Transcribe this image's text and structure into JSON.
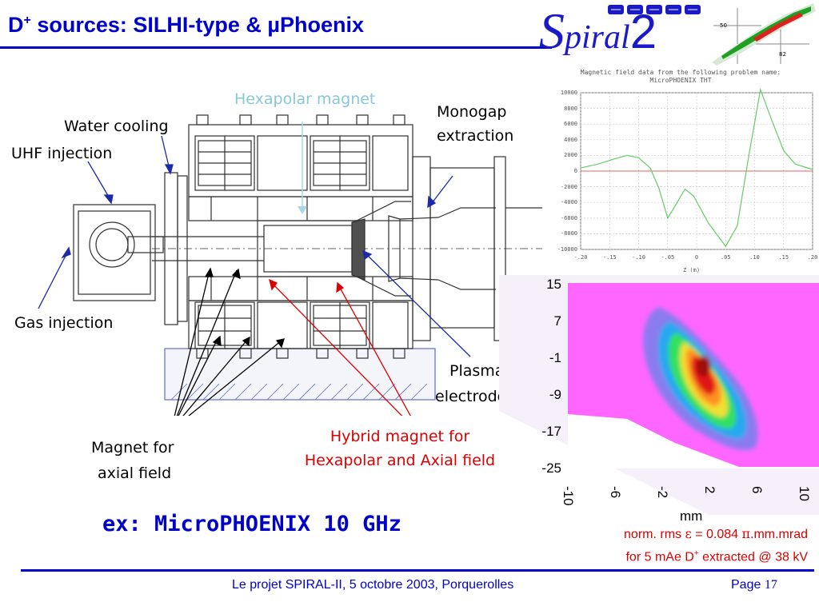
{
  "header": {
    "title_prefix": "D",
    "title_sup": "+",
    "title_rest": " sources: SILHI-type & µPhoenix",
    "logo": {
      "s": "S",
      "piral": "piral",
      "two": "2"
    }
  },
  "diagram": {
    "labels": {
      "water_cooling": "Water cooling",
      "uhf_injection": "UHF injection",
      "hexapolar_magnet": "Hexapolar magnet",
      "monogap_1": "Monogap",
      "monogap_2": "extraction",
      "gas_injection": "Gas injection",
      "plasma_1": "Plasma",
      "plasma_2": "electrode",
      "magnet_axial_1": "Magnet  for",
      "magnet_axial_2": "axial field",
      "hybrid_1": "Hybrid magnet for",
      "hybrid_2": "Hexapolar and Axial field"
    }
  },
  "field_plot": {
    "title_line1": "Magnetic field data from the following problem name:",
    "title_line2": "MicroPHOENIX THT",
    "xlabel": "Z (m)",
    "x_ticks": [
      "-.20",
      "-.15",
      "-.10",
      "-.05",
      "0",
      ".05",
      ".10",
      ".15",
      ".20"
    ],
    "y_ticks": [
      "10000",
      "8000",
      "6000",
      "4000",
      "2000",
      "0",
      "-2000",
      "-4000",
      "-6000",
      "-8000",
      "-10000"
    ],
    "ylim": [
      -10000,
      10000
    ],
    "xlim": [
      -0.2,
      0.2
    ],
    "curve": [
      [
        -0.2,
        400
      ],
      [
        -0.17,
        900
      ],
      [
        -0.14,
        1600
      ],
      [
        -0.12,
        2000
      ],
      [
        -0.1,
        1700
      ],
      [
        -0.08,
        400
      ],
      [
        -0.065,
        -2200
      ],
      [
        -0.05,
        -6000
      ],
      [
        -0.04,
        -4800
      ],
      [
        -0.02,
        -2300
      ],
      [
        -0.005,
        -3200
      ],
      [
        0.02,
        -6600
      ],
      [
        0.05,
        -9600
      ],
      [
        0.07,
        -7000
      ],
      [
        0.09,
        2000
      ],
      [
        0.11,
        10400
      ],
      [
        0.13,
        6400
      ],
      [
        0.15,
        2600
      ],
      [
        0.17,
        900
      ],
      [
        0.2,
        200
      ]
    ],
    "zero_line_color": "#dd3333",
    "curve_color": "#66cc66"
  },
  "emittance_plot": {
    "y_ticks": [
      "15",
      "7",
      "-1",
      "-9",
      "-17",
      "-25"
    ],
    "x_ticks": [
      "-10",
      "-6",
      "-2",
      "2",
      "6",
      "10"
    ],
    "xlabel": "mm"
  },
  "example": "ex: MicroPHOENIX 10 GHz",
  "norm": {
    "line1_a": "norm. rms ",
    "line1_eps": "ε",
    "line1_b": " =  0.084 ",
    "line1_pi": "π",
    "line1_c": ".mm.mrad",
    "line2_a": "for 5 mAe D",
    "line2_sup": "+",
    "line2_b": " extracted @ 38 kV"
  },
  "footer": {
    "center": "Le projet SPIRAL-II, 5 octobre 2003, Porquerolles",
    "page_label": "Page ",
    "page_num": "17"
  },
  "colors": {
    "accent": "#0000cc",
    "red": "#dd0000",
    "hexapolar": "#88c8d8",
    "drawing": "#303030"
  }
}
